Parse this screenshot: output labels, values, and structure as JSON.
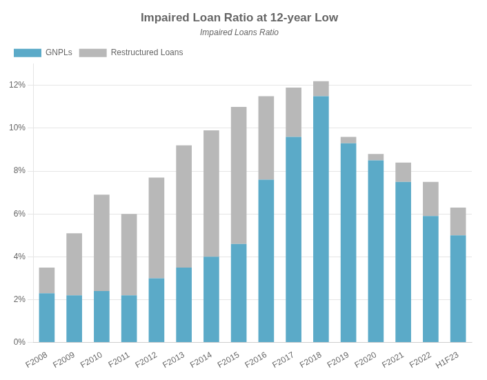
{
  "chart_data": {
    "type": "bar",
    "title": "Impaired Loan Ratio at 12-year Low",
    "subtitle": "Impaired Loans Ratio",
    "categories": [
      "F2008",
      "F2009",
      "F2010",
      "F2011",
      "F2012",
      "F2013",
      "F2014",
      "F2015",
      "F2016",
      "F2017",
      "F2018",
      "F2019",
      "F2020",
      "F2021",
      "F2022",
      "H1F23"
    ],
    "series": [
      {
        "name": "GNPLs",
        "color": "#5baac8",
        "values": [
          2.3,
          2.2,
          2.4,
          2.2,
          3.0,
          3.5,
          4.0,
          4.6,
          7.6,
          9.6,
          11.5,
          9.3,
          8.5,
          7.5,
          5.9,
          5.0
        ]
      },
      {
        "name": "Restructured Loans",
        "color": "#b8b8b8",
        "values": [
          1.2,
          2.9,
          4.5,
          3.8,
          4.7,
          5.7,
          5.9,
          6.4,
          3.9,
          2.3,
          0.7,
          0.3,
          0.3,
          0.9,
          1.6,
          1.3
        ]
      }
    ],
    "stacked": true,
    "ylim": [
      0,
      13
    ],
    "yticks": [
      {
        "value": 0,
        "label": "0%"
      },
      {
        "value": 2,
        "label": "2%"
      },
      {
        "value": 4,
        "label": "4%"
      },
      {
        "value": 6,
        "label": "6%"
      },
      {
        "value": 8,
        "label": "8%"
      },
      {
        "value": 10,
        "label": "10%"
      },
      {
        "value": 12,
        "label": "12%"
      }
    ],
    "grid": true,
    "legend": "upper left"
  }
}
